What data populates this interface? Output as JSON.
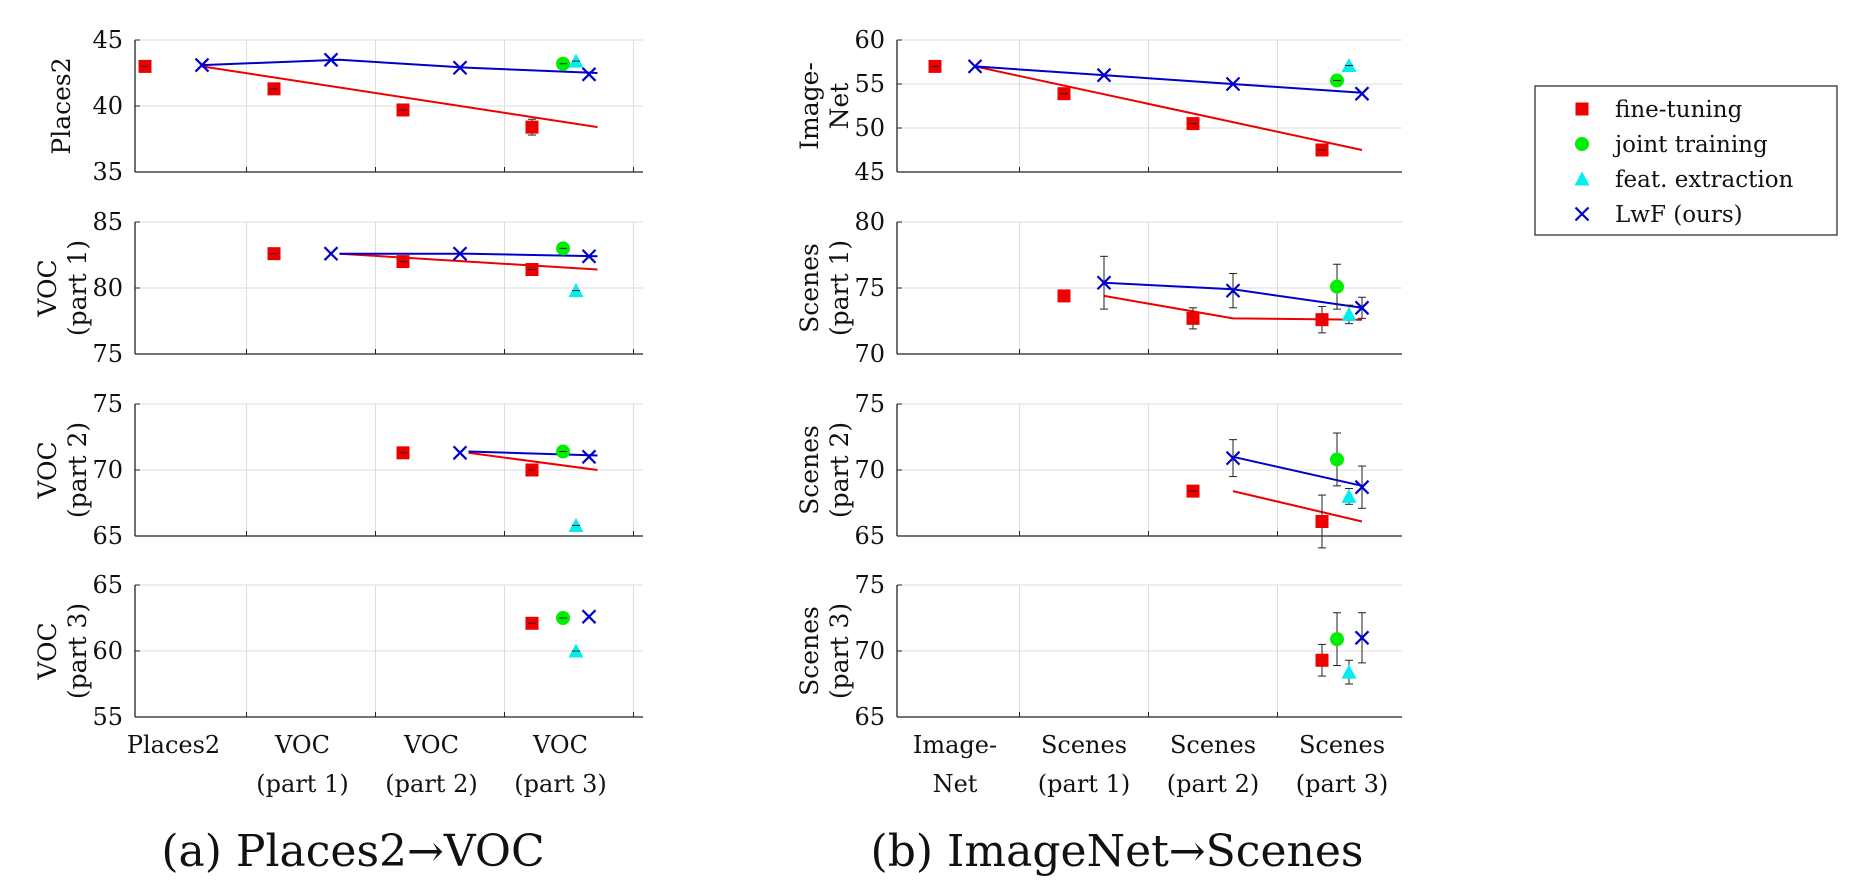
{
  "captions": {
    "a": "(a) Places2→VOC",
    "b": "(b) ImageNet→Scenes"
  },
  "legend": [
    {
      "key": "ft",
      "label": "fine-tuning",
      "color": "#ee0000",
      "marker": "square"
    },
    {
      "key": "jt",
      "label": "joint training",
      "color": "#00ee00",
      "marker": "circle"
    },
    {
      "key": "fe",
      "label": "feat. extraction",
      "color": "#00eeee",
      "marker": "triangle"
    },
    {
      "key": "lwf",
      "label": "LwF (ours)",
      "color": "#0000cc",
      "marker": "x"
    }
  ],
  "chart_data": [
    {
      "id": "a",
      "type": "scatter",
      "categories": [
        "Places2",
        "VOC\n(part 1)",
        "VOC\n(part 2)",
        "VOC\n(part 3)"
      ],
      "panels": [
        {
          "ylabel": "Places2",
          "ylim": [
            35,
            45
          ],
          "yticks": [
            35,
            40,
            45
          ],
          "ft_points": [
            {
              "x": 0,
              "y": 43.0
            },
            {
              "x": 1,
              "y": 41.3
            },
            {
              "x": 2,
              "y": 39.7
            },
            {
              "x": 3,
              "y": 38.4,
              "err": 0.6
            }
          ],
          "lwf_points": [
            {
              "x": 0,
              "y": 43.1
            },
            {
              "x": 1,
              "y": 43.5
            },
            {
              "x": 2,
              "y": 42.9
            },
            {
              "x": 3,
              "y": 42.4
            }
          ],
          "jt": {
            "x": 3,
            "y": 43.2
          },
          "fe": {
            "x": 3,
            "y": 43.4
          },
          "ft_line": [
            [
              0,
              43.0
            ],
            [
              3,
              38.4
            ]
          ],
          "lwf_line": [
            [
              0,
              43.1
            ],
            [
              1,
              43.5
            ],
            [
              2,
              42.9
            ],
            [
              3,
              42.5
            ]
          ]
        },
        {
          "ylabel": "VOC\n(part 1)",
          "ylim": [
            75,
            85
          ],
          "yticks": [
            75,
            80,
            85
          ],
          "ft_points": [
            {
              "x": 1,
              "y": 82.6
            },
            {
              "x": 2,
              "y": 82.0
            },
            {
              "x": 3,
              "y": 81.4
            }
          ],
          "lwf_points": [
            {
              "x": 1,
              "y": 82.6
            },
            {
              "x": 2,
              "y": 82.6
            },
            {
              "x": 3,
              "y": 82.4
            }
          ],
          "jt": {
            "x": 3,
            "y": 83.0
          },
          "fe": {
            "x": 3,
            "y": 79.8
          },
          "ft_line": [
            [
              1,
              82.6
            ],
            [
              3,
              81.4
            ]
          ],
          "lwf_line": [
            [
              1,
              82.6
            ],
            [
              2,
              82.6
            ],
            [
              3,
              82.4
            ]
          ]
        },
        {
          "ylabel": "VOC\n(part 2)",
          "ylim": [
            65,
            75
          ],
          "yticks": [
            65,
            70,
            75
          ],
          "ft_points": [
            {
              "x": 2,
              "y": 71.3
            },
            {
              "x": 3,
              "y": 70.0
            }
          ],
          "lwf_points": [
            {
              "x": 2,
              "y": 71.3
            },
            {
              "x": 3,
              "y": 71.0
            }
          ],
          "jt": {
            "x": 3,
            "y": 71.4
          },
          "fe": {
            "x": 3,
            "y": 65.8
          },
          "ft_line": [
            [
              2,
              71.3
            ],
            [
              3,
              70.0
            ]
          ],
          "lwf_line": [
            [
              2,
              71.4
            ],
            [
              3,
              71.1
            ]
          ]
        },
        {
          "ylabel": "VOC\n(part 3)",
          "ylim": [
            55,
            65
          ],
          "yticks": [
            55,
            60,
            65
          ],
          "ft_points": [
            {
              "x": 3,
              "y": 62.1
            }
          ],
          "lwf_points": [
            {
              "x": 3,
              "y": 62.6
            }
          ],
          "jt": {
            "x": 3,
            "y": 62.5
          },
          "fe": {
            "x": 3,
            "y": 60.0
          },
          "ft_line": [],
          "lwf_line": []
        }
      ]
    },
    {
      "id": "b",
      "type": "scatter",
      "categories": [
        "Image-\nNet",
        "Scenes\n(part 1)",
        "Scenes\n(part 2)",
        "Scenes\n(part 3)"
      ],
      "panels": [
        {
          "ylabel": "Image-\nNet",
          "ylim": [
            45,
            60
          ],
          "yticks": [
            45,
            50,
            55,
            60
          ],
          "ft_points": [
            {
              "x": 0,
              "y": 57.0
            },
            {
              "x": 1,
              "y": 53.9
            },
            {
              "x": 2,
              "y": 50.5
            },
            {
              "x": 3,
              "y": 47.5
            }
          ],
          "lwf_points": [
            {
              "x": 0,
              "y": 57.0
            },
            {
              "x": 1,
              "y": 56.0
            },
            {
              "x": 2,
              "y": 55.0
            },
            {
              "x": 3,
              "y": 53.9
            }
          ],
          "jt": {
            "x": 3,
            "y": 55.4
          },
          "fe": {
            "x": 3,
            "y": 57.1
          },
          "ft_line": [
            [
              0,
              57.0
            ],
            [
              3,
              47.5
            ]
          ],
          "lwf_line": [
            [
              0,
              57.0
            ],
            [
              3,
              54.0
            ]
          ]
        },
        {
          "ylabel": "Scenes\n(part 1)",
          "ylim": [
            70,
            80
          ],
          "yticks": [
            70,
            75,
            80
          ],
          "ft_points": [
            {
              "x": 1,
              "y": 74.4,
              "err": 0.4
            },
            {
              "x": 2,
              "y": 72.7,
              "err": 0.8
            },
            {
              "x": 3,
              "y": 72.6,
              "err": 1.0
            }
          ],
          "lwf_points": [
            {
              "x": 1,
              "y": 75.4,
              "err": 2.0
            },
            {
              "x": 2,
              "y": 74.8,
              "err": 1.3
            },
            {
              "x": 3,
              "y": 73.5,
              "err": 0.8
            }
          ],
          "jt": {
            "x": 3,
            "y": 75.1,
            "err": 1.7
          },
          "fe": {
            "x": 3,
            "y": 73.0,
            "err": 0.7
          },
          "ft_line": [
            [
              1,
              74.4
            ],
            [
              2,
              72.7
            ],
            [
              3,
              72.6
            ]
          ],
          "lwf_line": [
            [
              1,
              75.4
            ],
            [
              2,
              74.9
            ],
            [
              3,
              73.5
            ]
          ]
        },
        {
          "ylabel": "Scenes\n(part 2)",
          "ylim": [
            65,
            75
          ],
          "yticks": [
            65,
            70,
            75
          ],
          "ft_points": [
            {
              "x": 2,
              "y": 68.4
            },
            {
              "x": 3,
              "y": 66.1,
              "err": 2.0
            }
          ],
          "lwf_points": [
            {
              "x": 2,
              "y": 70.9,
              "err": 1.4
            },
            {
              "x": 3,
              "y": 68.7,
              "err": 1.6
            }
          ],
          "jt": {
            "x": 3,
            "y": 70.8,
            "err": 2.0
          },
          "fe": {
            "x": 3,
            "y": 68.0,
            "err": 0.6
          },
          "ft_line": [
            [
              2,
              68.4
            ],
            [
              3,
              66.1
            ]
          ],
          "lwf_line": [
            [
              2,
              71.0
            ],
            [
              3,
              68.8
            ]
          ]
        },
        {
          "ylabel": "Scenes\n(part 3)",
          "ylim": [
            65,
            75
          ],
          "yticks": [
            65,
            70,
            75
          ],
          "ft_points": [
            {
              "x": 3,
              "y": 69.3,
              "err": 1.2
            }
          ],
          "lwf_points": [
            {
              "x": 3,
              "y": 71.0,
              "err": 1.9
            }
          ],
          "jt": {
            "x": 3,
            "y": 70.9,
            "err": 2.0
          },
          "fe": {
            "x": 3,
            "y": 68.4,
            "err": 0.9
          },
          "ft_line": [],
          "lwf_line": []
        }
      ]
    }
  ]
}
